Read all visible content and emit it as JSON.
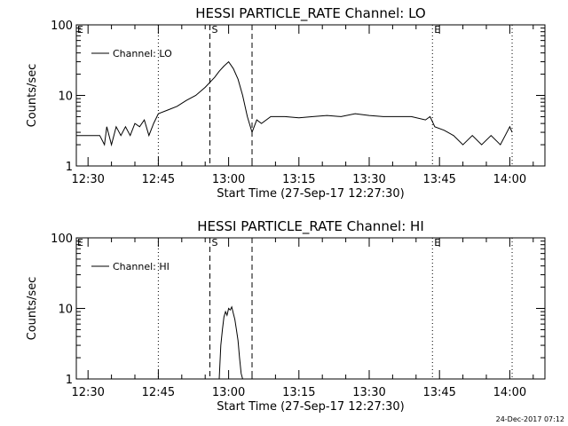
{
  "footer_timestamp": "24-Dec-2017 07:12",
  "chart_data": [
    {
      "type": "line",
      "title": "HESSI PARTICLE_RATE Channel: LO",
      "xlabel": "Start Time (27-Sep-17 12:27:30)",
      "ylabel": "Counts/sec",
      "y_scale": "log",
      "ylim": [
        1,
        100
      ],
      "yticks": [
        1,
        10,
        100
      ],
      "ytick_labels": [
        "1",
        "10",
        "100"
      ],
      "xlim": [
        "12:27:30",
        "14:07:30"
      ],
      "xticks": [
        "12:30",
        "12:45",
        "13:00",
        "13:15",
        "13:30",
        "13:45",
        "14:00"
      ],
      "legend": {
        "placement": "top-left",
        "entries": [
          "Channel: LO"
        ]
      },
      "markers": [
        {
          "time": "12:45",
          "style": "dotted",
          "label": ""
        },
        {
          "time": "12:56",
          "style": "dashed",
          "label": "S"
        },
        {
          "time": "13:05",
          "style": "dashed",
          "label": ""
        },
        {
          "time": "13:43:30",
          "style": "dotted",
          "label": "E"
        },
        {
          "time": "14:00:30",
          "style": "dotted",
          "label": ""
        }
      ],
      "corner_labels": [
        {
          "text": "E",
          "position": "top-left"
        }
      ],
      "series": [
        {
          "name": "Channel: LO",
          "x": [
            "12:27:30",
            "12:30",
            "12:32:30",
            "12:33:30",
            "12:34",
            "12:35",
            "12:36",
            "12:37",
            "12:38",
            "12:39",
            "12:40",
            "12:41",
            "12:42",
            "12:43",
            "12:44",
            "12:45",
            "12:47",
            "12:49",
            "12:51",
            "12:53",
            "12:55",
            "12:57",
            "12:58",
            "12:59",
            "13:00",
            "13:01",
            "13:02",
            "13:03",
            "13:04",
            "13:05",
            "13:06",
            "13:07",
            "13:09",
            "13:12",
            "13:15",
            "13:18",
            "13:21",
            "13:24",
            "13:27",
            "13:30",
            "13:33",
            "13:36",
            "13:39",
            "13:42",
            "13:43",
            "13:44",
            "13:46",
            "13:48",
            "13:50",
            "13:52",
            "13:54",
            "13:56",
            "13:58",
            "14:00",
            "14:00:30"
          ],
          "y": [
            2.7,
            2.7,
            2.7,
            2.0,
            3.6,
            2.0,
            3.6,
            2.7,
            3.6,
            2.7,
            4.0,
            3.6,
            4.5,
            2.7,
            4.0,
            5.5,
            6.2,
            7.0,
            8.5,
            10.0,
            13.0,
            18.0,
            22.0,
            26.0,
            30.0,
            24.0,
            17.0,
            10.0,
            5.0,
            3.0,
            4.5,
            4.0,
            5.0,
            5.0,
            4.8,
            5.0,
            5.2,
            5.0,
            5.5,
            5.2,
            5.0,
            5.0,
            5.0,
            4.5,
            5.0,
            3.6,
            3.2,
            2.7,
            2.0,
            2.7,
            2.0,
            2.7,
            2.0,
            3.6,
            3.0
          ]
        }
      ]
    },
    {
      "type": "line",
      "title": "HESSI PARTICLE_RATE Channel: HI",
      "xlabel": "Start Time (27-Sep-17 12:27:30)",
      "ylabel": "Counts/sec",
      "y_scale": "log",
      "ylim": [
        1,
        100
      ],
      "yticks": [
        1,
        10,
        100
      ],
      "ytick_labels": [
        "1",
        "10",
        "100"
      ],
      "xlim": [
        "12:27:30",
        "14:07:30"
      ],
      "xticks": [
        "12:30",
        "12:45",
        "13:00",
        "13:15",
        "13:30",
        "13:45",
        "14:00"
      ],
      "legend": {
        "placement": "top-left",
        "entries": [
          "Channel: HI"
        ]
      },
      "markers": [
        {
          "time": "12:45",
          "style": "dotted",
          "label": ""
        },
        {
          "time": "12:56",
          "style": "dashed",
          "label": "S"
        },
        {
          "time": "13:05",
          "style": "dashed",
          "label": ""
        },
        {
          "time": "13:43:30",
          "style": "dotted",
          "label": "E"
        },
        {
          "time": "14:00:30",
          "style": "dotted",
          "label": ""
        }
      ],
      "corner_labels": [
        {
          "text": "E",
          "position": "top-left"
        }
      ],
      "series": [
        {
          "name": "Channel: HI",
          "x": [
            "12:58",
            "12:58:20",
            "12:58:40",
            "12:59",
            "12:59:20",
            "12:59:40",
            "13:00",
            "13:00:20",
            "13:00:40",
            "13:01",
            "13:01:20",
            "13:01:40",
            "13:02",
            "13:02:20",
            "13:02:40",
            "13:03"
          ],
          "y": [
            1.0,
            3.0,
            5.0,
            7.5,
            9.0,
            8.0,
            10.0,
            9.5,
            10.5,
            8.5,
            7.0,
            5.0,
            3.5,
            2.0,
            1.2,
            1.0
          ]
        }
      ]
    }
  ]
}
